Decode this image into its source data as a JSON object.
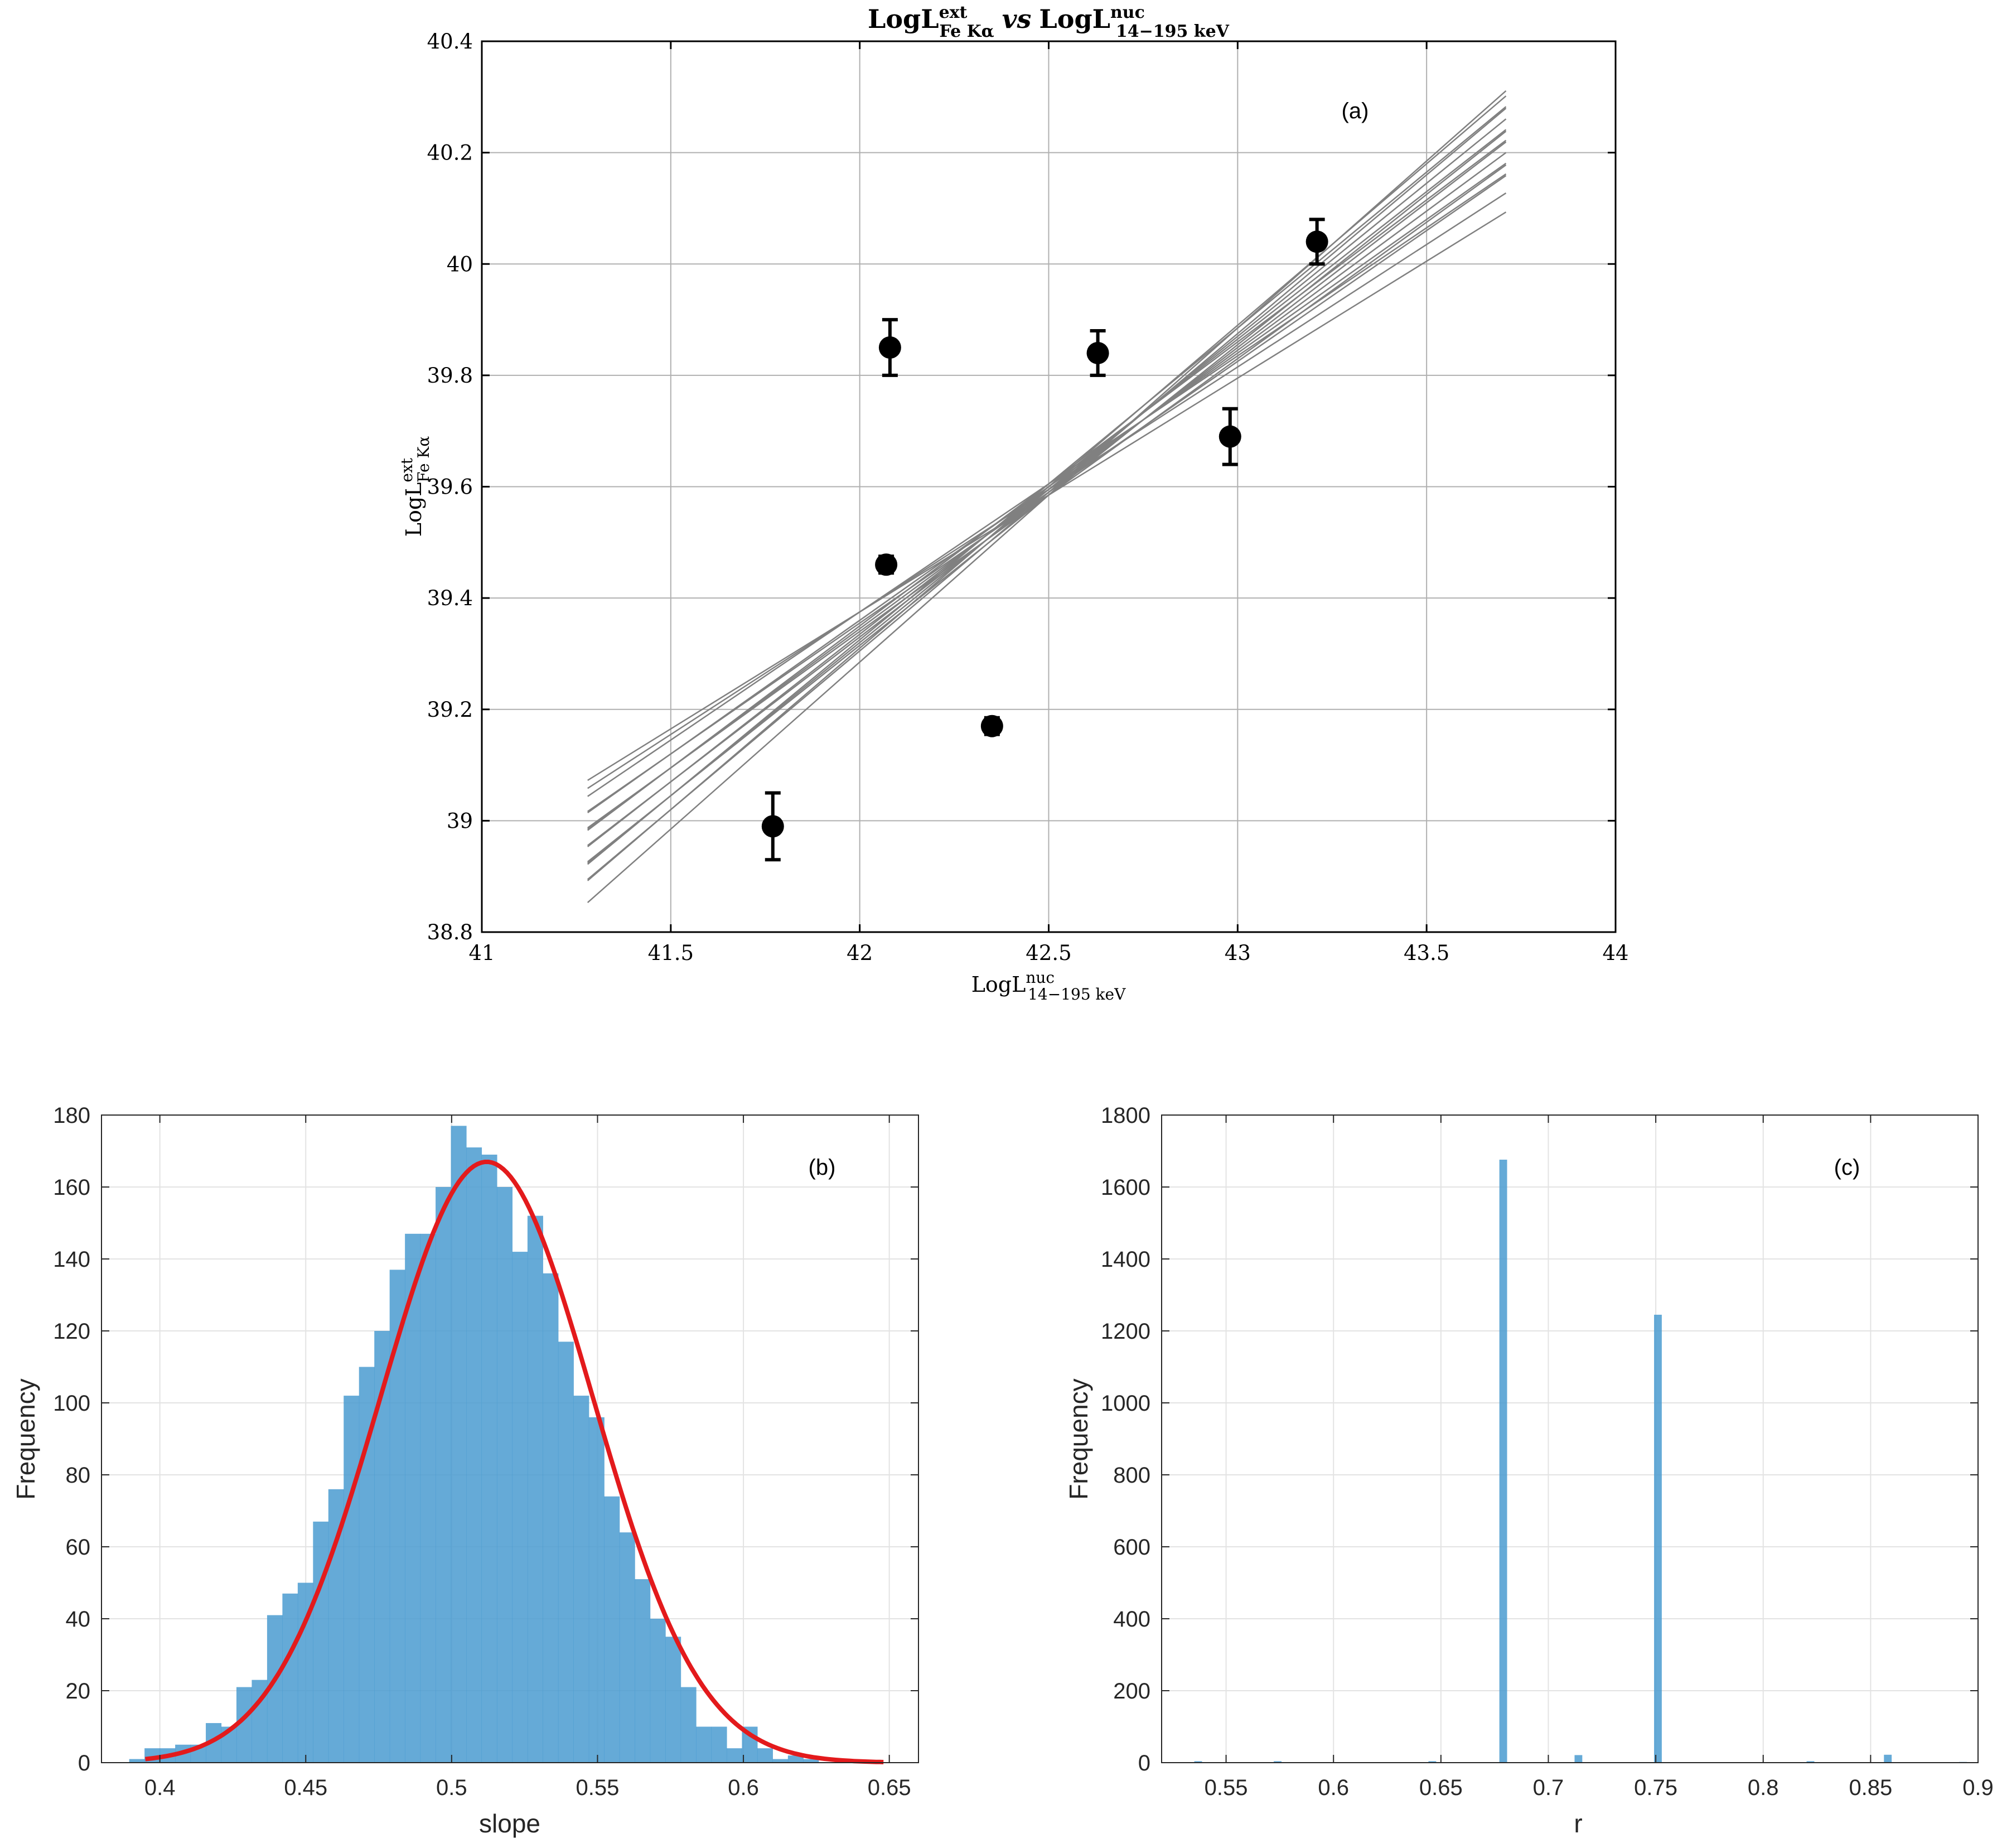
{
  "chart_data": [
    {
      "panel": "a",
      "type": "scatter",
      "title": "LogL^{ext}_{Fe Kα} vs LogL^{nuc}_{14−195 keV}",
      "title_parts": {
        "a": "LogL",
        "a_sup": "ext",
        "a_sub": "Fe Kα",
        "vs": "vs",
        "b": "LogL",
        "b_sup": "nuc",
        "b_sub": "14−195 keV"
      },
      "xlabel": "LogL^{nuc}_{14−195 keV}",
      "xlabel_parts": {
        "main": "LogL",
        "sup": "nuc",
        "sub": "14−195 keV"
      },
      "ylabel": "LogL^{ext}_{Fe Kα}",
      "ylabel_parts": {
        "main": "LogL",
        "sup": "ext",
        "sub": "Fe Kα"
      },
      "xlim": [
        41,
        44
      ],
      "ylim": [
        38.8,
        40.4
      ],
      "xticks": [
        41,
        41.5,
        42,
        42.5,
        43,
        43.5,
        44
      ],
      "xtick_labels": [
        "41",
        "41.5",
        "42",
        "42.5",
        "43",
        "43.5",
        "44"
      ],
      "yticks": [
        38.8,
        39.0,
        39.2,
        39.4,
        39.6,
        39.8,
        40.0,
        40.2,
        40.4
      ],
      "ytick_labels": [
        "38.8",
        "39",
        "39.2",
        "39.4",
        "39.6",
        "39.8",
        "40",
        "40.2",
        "40.4"
      ],
      "grid": true,
      "annotation": "(a)",
      "points": [
        {
          "x": 41.77,
          "y": 38.99,
          "yerr": 0.06
        },
        {
          "x": 42.07,
          "y": 39.46,
          "yerr": 0.015
        },
        {
          "x": 42.08,
          "y": 39.85,
          "yerr": 0.05
        },
        {
          "x": 42.35,
          "y": 39.17,
          "yerr": 0.015
        },
        {
          "x": 42.63,
          "y": 39.84,
          "yerr": 0.04
        },
        {
          "x": 42.98,
          "y": 39.69,
          "yerr": 0.05
        },
        {
          "x": 43.21,
          "y": 40.04,
          "yerr": 0.04
        }
      ],
      "fit_lines": {
        "x_range": [
          41.28,
          43.71
        ],
        "pivot": {
          "x": 42.5,
          "y": 39.595
        },
        "slopes": [
          0.42,
          0.44,
          0.46,
          0.47,
          0.48,
          0.49,
          0.5,
          0.51,
          0.52,
          0.53,
          0.54,
          0.55,
          0.56,
          0.57,
          0.58,
          0.6
        ],
        "color": "#808080"
      }
    },
    {
      "panel": "b",
      "type": "bar",
      "xlabel": "slope",
      "ylabel": "Frequency",
      "xlim": [
        0.38,
        0.66
      ],
      "ylim": [
        0,
        180
      ],
      "xticks": [
        0.4,
        0.45,
        0.5,
        0.55,
        0.6,
        0.65
      ],
      "xtick_labels": [
        "0.4",
        "0.45",
        "0.5",
        "0.55",
        "0.6",
        "0.65"
      ],
      "yticks": [
        0,
        20,
        40,
        60,
        80,
        100,
        120,
        140,
        160,
        180
      ],
      "ytick_labels": [
        "0",
        "20",
        "40",
        "60",
        "80",
        "100",
        "120",
        "140",
        "160",
        "180"
      ],
      "grid": true,
      "annotation": "(b)",
      "bin_start": 0.3895,
      "bin_width": 0.00525,
      "counts": [
        1,
        4,
        4,
        5,
        5,
        11,
        10,
        21,
        23,
        41,
        47,
        50,
        67,
        76,
        102,
        110,
        120,
        137,
        147,
        147,
        160,
        177,
        171,
        169,
        160,
        142,
        152,
        136,
        117,
        102,
        96,
        74,
        64,
        51,
        40,
        35,
        21,
        10,
        10,
        4,
        10,
        4,
        1,
        2,
        1
      ],
      "bar_color": "#4a9bd0",
      "fit_curve": {
        "type": "gaussian",
        "peak": 167,
        "mean": 0.512,
        "sigma": 0.0365,
        "x_range": [
          0.395,
          0.648
        ],
        "color": "#e31a1c"
      }
    },
    {
      "panel": "c",
      "type": "bar",
      "xlabel": "r",
      "ylabel": "Frequency",
      "xlim": [
        0.52,
        0.9
      ],
      "ylim": [
        0,
        1800
      ],
      "xticks": [
        0.55,
        0.6,
        0.65,
        0.7,
        0.75,
        0.8,
        0.85,
        0.9
      ],
      "xtick_labels": [
        "0.55",
        "0.6",
        "0.65",
        "0.7",
        "0.75",
        "0.8",
        "0.85",
        "0.9"
      ],
      "yticks": [
        0,
        200,
        400,
        600,
        800,
        1000,
        1200,
        1400,
        1600,
        1800
      ],
      "ytick_labels": [
        "0",
        "200",
        "400",
        "600",
        "800",
        "1000",
        "1200",
        "1400",
        "1600",
        "1800"
      ],
      "grid": true,
      "annotation": "(c)",
      "bin_width": 0.0036,
      "bars": [
        {
          "x": 0.537,
          "count": 4
        },
        {
          "x": 0.574,
          "count": 4
        },
        {
          "x": 0.646,
          "count": 4
        },
        {
          "x": 0.679,
          "count": 1676
        },
        {
          "x": 0.714,
          "count": 21
        },
        {
          "x": 0.751,
          "count": 1245
        },
        {
          "x": 0.822,
          "count": 4
        },
        {
          "x": 0.858,
          "count": 22
        },
        {
          "x": 0.893,
          "count": 2
        }
      ],
      "bar_color": "#4a9bd0"
    }
  ]
}
